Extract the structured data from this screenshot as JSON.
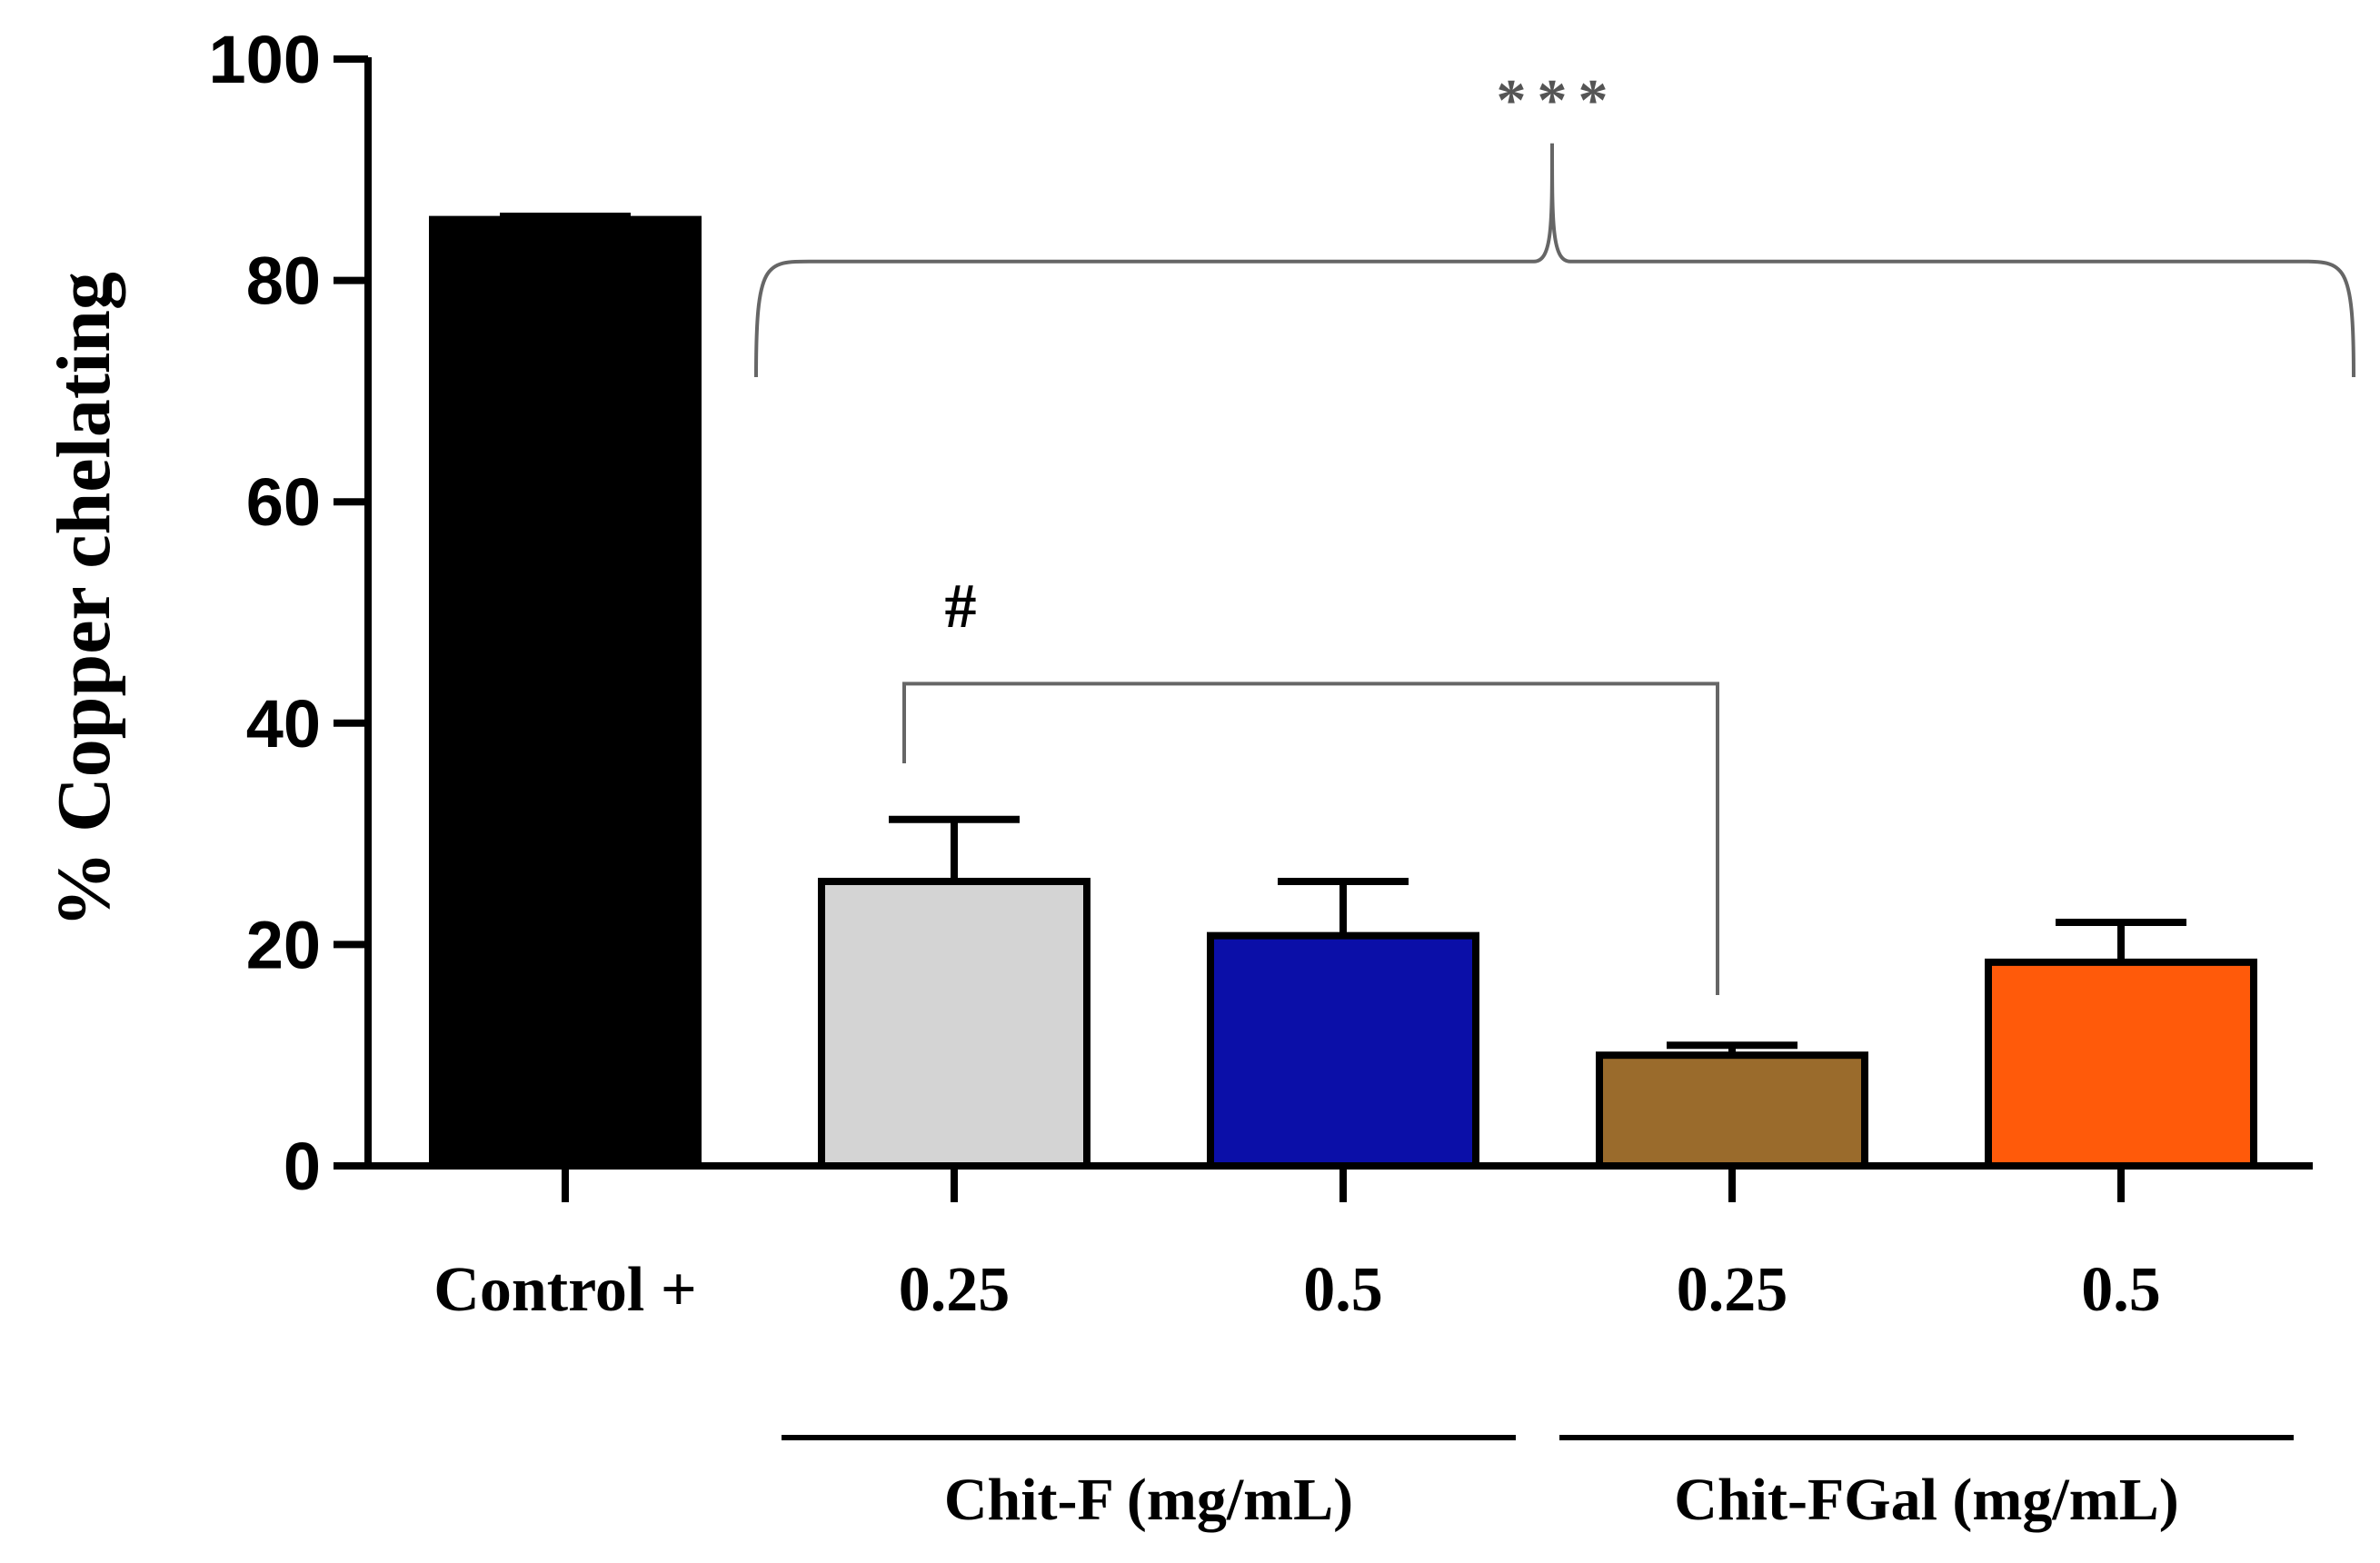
{
  "chart_data": {
    "type": "bar",
    "title": "",
    "xlabel": "",
    "ylabel": "% Copper chelating",
    "ylim": [
      0,
      100
    ],
    "yticks": [
      "0",
      "20",
      "40",
      "60",
      "80",
      "100"
    ],
    "grid": false,
    "categories": [
      "Control +",
      "0.25",
      "0.5",
      "0.25",
      "0.5"
    ],
    "values": [
      85.5,
      25.7,
      20.8,
      10.0,
      18.4
    ],
    "errors": [
      0.3,
      5.6,
      4.9,
      0.9,
      3.6
    ],
    "colors": [
      "#000000",
      "#d4d4d4",
      "#0b0fa8",
      "#9a6b2c",
      "#ff5a0a"
    ],
    "groups": [
      {
        "label": "Chit-F (mg/mL)",
        "category_indices": [
          1,
          2
        ]
      },
      {
        "label": "Chit-FGal (mg/mL)",
        "category_indices": [
          3,
          4
        ]
      }
    ],
    "annotations": [
      {
        "text": "***",
        "spans": [
          1,
          4
        ],
        "bracket": "brace",
        "level": 85
      },
      {
        "text": "#",
        "spans": [
          1,
          3
        ],
        "bracket": "line",
        "level": 48
      }
    ]
  }
}
